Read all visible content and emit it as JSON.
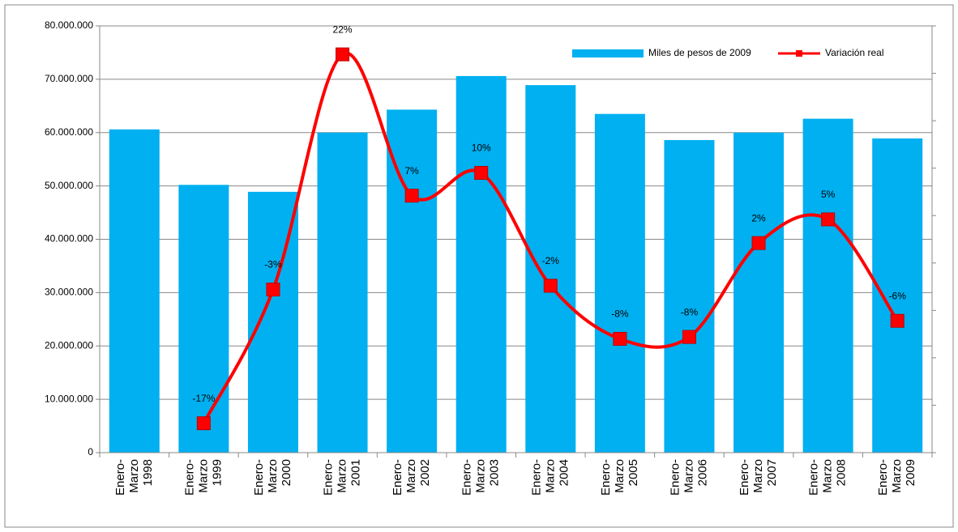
{
  "chart_data": {
    "type": "bar_line",
    "categories": [
      [
        "Enero-",
        "Marzo",
        "1998"
      ],
      [
        "Enero-",
        "Marzo",
        "1999"
      ],
      [
        "Enero-",
        "Marzo",
        "2000"
      ],
      [
        "Enero-",
        "Marzo",
        "2001"
      ],
      [
        "Enero-",
        "Marzo",
        "2002"
      ],
      [
        "Enero-",
        "Marzo",
        "2003"
      ],
      [
        "Enero-",
        "Marzo",
        "2004"
      ],
      [
        "Enero-",
        "Marzo",
        "2005"
      ],
      [
        "Enero-",
        "Marzo",
        "2006"
      ],
      [
        "Enero-",
        "Marzo",
        "2007"
      ],
      [
        "Enero-",
        "Marzo",
        "2008"
      ],
      [
        "Enero-",
        "Marzo",
        "2009"
      ]
    ],
    "series": [
      {
        "name": "Miles de pesos de 2009",
        "type": "bar",
        "color": "#00b0f0",
        "values": [
          60600000,
          50200000,
          48900000,
          60000000,
          64300000,
          70600000,
          68900000,
          63500000,
          58600000,
          60000000,
          62600000,
          58900000
        ]
      },
      {
        "name": "Variación real",
        "type": "line",
        "axis": "y2",
        "color": "#ff0000",
        "smooth": true,
        "values": [
          null,
          -16.9,
          -2.8,
          22,
          7.1,
          9.5,
          -2.4,
          -8.0,
          -7.8,
          2.1,
          4.6,
          -6.1
        ],
        "value_labels": [
          null,
          "-17%",
          "-3%",
          "22%",
          "7%",
          "10%",
          "-2%",
          "-8%",
          "-8%",
          "2%",
          "5%",
          "-6%"
        ]
      }
    ],
    "ylim": [
      0,
      80000000
    ],
    "yticks": [
      0,
      {
        "value": 10000000,
        "label": "10.000.000"
      },
      {
        "value": 20000000,
        "label": "20.000.000"
      },
      {
        "value": 30000000,
        "label": "30.000.000"
      },
      {
        "value": 40000000,
        "label": "40.000.000"
      },
      {
        "value": 50000000,
        "label": "50.000.000"
      },
      {
        "value": 60000000,
        "label": "60.000.000"
      },
      {
        "value": 70000000,
        "label": "70.000.000"
      },
      {
        "value": 80000000,
        "label": "80.000.000"
      }
    ],
    "y2lim": [
      -20,
      25
    ],
    "y2ticks": [
      -20,
      -15,
      -10,
      -5,
      0,
      5,
      10,
      15,
      20,
      25
    ],
    "grid": true,
    "legend": "top-right"
  }
}
